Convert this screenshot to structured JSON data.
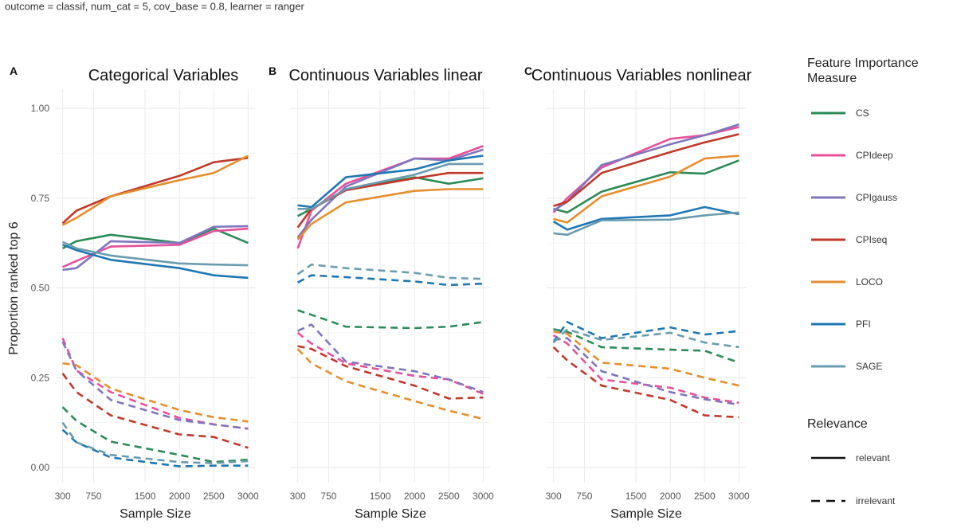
{
  "subtitle": "outcome = classif, num_cat = 5, cov_base = 0.8, learner = ranger",
  "ylabel": "Proportion ranked top 6",
  "xlabel": "Sample Size",
  "x_ticks": [
    300,
    750,
    1500,
    2000,
    2500,
    3000
  ],
  "y_ticks": [
    "0.00",
    "0.25",
    "0.50",
    "0.75",
    "1.00"
  ],
  "legend": {
    "measure_title": "Feature Importance Measure",
    "measures": [
      "CS",
      "CPIdeep",
      "CPIgauss",
      "CPIseq",
      "LOCO",
      "PFI",
      "SAGE"
    ],
    "relevance_title": "Relevance",
    "relevance": [
      "relevant",
      "irrelevant"
    ]
  },
  "colors": {
    "CS": "#2b8a57",
    "CPIdeep": "#e8509a",
    "CPIgauss": "#7f76bd",
    "CPIseq": "#c0392b",
    "LOCO": "#e58e2e",
    "PFI": "#1f77b4",
    "SAGE": "#6a9cae"
  },
  "chart_data": [
    {
      "type": "line",
      "panel_tag": "A",
      "title": "Categorical Variables",
      "x": [
        300,
        500,
        1000,
        2000,
        2500,
        3000
      ],
      "xlim": [
        200,
        3100
      ],
      "ylim": [
        -0.02,
        1.02
      ],
      "series": [
        {
          "name": "CS",
          "relevance": "relevant",
          "values": [
            0.61,
            0.63,
            0.648,
            0.625,
            0.665,
            0.625
          ]
        },
        {
          "name": "CPIdeep",
          "relevance": "relevant",
          "values": [
            0.558,
            0.575,
            0.615,
            0.62,
            0.658,
            0.665
          ]
        },
        {
          "name": "CPIgauss",
          "relevance": "relevant",
          "values": [
            0.55,
            0.555,
            0.63,
            0.625,
            0.67,
            0.672
          ]
        },
        {
          "name": "CPIseq",
          "relevance": "relevant",
          "values": [
            0.68,
            0.715,
            0.755,
            0.812,
            0.85,
            0.862
          ]
        },
        {
          "name": "LOCO",
          "relevance": "relevant",
          "values": [
            0.675,
            0.695,
            0.755,
            0.8,
            0.82,
            0.868
          ]
        },
        {
          "name": "PFI",
          "relevance": "relevant",
          "values": [
            0.62,
            0.605,
            0.578,
            0.555,
            0.535,
            0.528
          ]
        },
        {
          "name": "SAGE",
          "relevance": "relevant",
          "values": [
            0.628,
            0.61,
            0.59,
            0.568,
            0.565,
            0.563
          ]
        },
        {
          "name": "CS",
          "relevance": "irrelevant",
          "values": [
            0.168,
            0.13,
            0.072,
            0.035,
            0.015,
            0.022
          ]
        },
        {
          "name": "CPIdeep",
          "relevance": "irrelevant",
          "values": [
            0.36,
            0.27,
            0.21,
            0.138,
            0.12,
            0.108
          ]
        },
        {
          "name": "CPIgauss",
          "relevance": "irrelevant",
          "values": [
            0.35,
            0.27,
            0.188,
            0.132,
            0.12,
            0.108
          ]
        },
        {
          "name": "CPIseq",
          "relevance": "irrelevant",
          "values": [
            0.262,
            0.21,
            0.145,
            0.092,
            0.085,
            0.055
          ]
        },
        {
          "name": "LOCO",
          "relevance": "irrelevant",
          "values": [
            0.29,
            0.285,
            0.22,
            0.16,
            0.14,
            0.128
          ]
        },
        {
          "name": "PFI",
          "relevance": "irrelevant",
          "values": [
            0.105,
            0.07,
            0.028,
            0.003,
            0.005,
            0.005
          ]
        },
        {
          "name": "SAGE",
          "relevance": "irrelevant",
          "values": [
            0.125,
            0.07,
            0.035,
            0.015,
            0.012,
            0.018
          ]
        }
      ]
    },
    {
      "type": "line",
      "panel_tag": "B",
      "title": "Continuous Variables linear",
      "x": [
        300,
        500,
        1000,
        2000,
        2500,
        3000
      ],
      "xlim": [
        200,
        3100
      ],
      "ylim": [
        -0.02,
        1.02
      ],
      "series": [
        {
          "name": "CS",
          "relevance": "relevant",
          "values": [
            0.7,
            0.72,
            0.772,
            0.808,
            0.79,
            0.805
          ]
        },
        {
          "name": "CPIdeep",
          "relevance": "relevant",
          "values": [
            0.61,
            0.715,
            0.79,
            0.86,
            0.86,
            0.895
          ]
        },
        {
          "name": "CPIgauss",
          "relevance": "relevant",
          "values": [
            0.64,
            0.69,
            0.782,
            0.86,
            0.855,
            0.885
          ]
        },
        {
          "name": "CPIseq",
          "relevance": "relevant",
          "values": [
            0.668,
            0.72,
            0.772,
            0.805,
            0.82,
            0.82
          ]
        },
        {
          "name": "LOCO",
          "relevance": "relevant",
          "values": [
            0.635,
            0.678,
            0.738,
            0.77,
            0.775,
            0.775
          ]
        },
        {
          "name": "PFI",
          "relevance": "relevant",
          "values": [
            0.73,
            0.725,
            0.808,
            0.83,
            0.855,
            0.868
          ]
        },
        {
          "name": "SAGE",
          "relevance": "relevant",
          "values": [
            0.72,
            0.72,
            0.775,
            0.815,
            0.845,
            0.845
          ]
        },
        {
          "name": "CS",
          "relevance": "irrelevant",
          "values": [
            0.438,
            0.425,
            0.392,
            0.388,
            0.392,
            0.405
          ]
        },
        {
          "name": "CPIdeep",
          "relevance": "irrelevant",
          "values": [
            0.375,
            0.345,
            0.29,
            0.255,
            0.245,
            0.205
          ]
        },
        {
          "name": "CPIgauss",
          "relevance": "irrelevant",
          "values": [
            0.38,
            0.398,
            0.295,
            0.268,
            0.245,
            0.21
          ]
        },
        {
          "name": "CPIseq",
          "relevance": "irrelevant",
          "values": [
            0.338,
            0.33,
            0.282,
            0.228,
            0.192,
            0.195
          ]
        },
        {
          "name": "LOCO",
          "relevance": "irrelevant",
          "values": [
            0.33,
            0.29,
            0.24,
            0.185,
            0.158,
            0.135
          ]
        },
        {
          "name": "PFI",
          "relevance": "irrelevant",
          "values": [
            0.515,
            0.535,
            0.53,
            0.518,
            0.508,
            0.512
          ]
        },
        {
          "name": "SAGE",
          "relevance": "irrelevant",
          "values": [
            0.538,
            0.565,
            0.555,
            0.542,
            0.528,
            0.525
          ]
        }
      ]
    },
    {
      "type": "line",
      "panel_tag": "C",
      "title": "Continuous Variables nonlinear",
      "x": [
        300,
        500,
        1000,
        2000,
        2500,
        3000
      ],
      "xlim": [
        200,
        3100
      ],
      "ylim": [
        -0.02,
        1.02
      ],
      "series": [
        {
          "name": "CS",
          "relevance": "relevant",
          "values": [
            0.72,
            0.71,
            0.768,
            0.822,
            0.818,
            0.855
          ]
        },
        {
          "name": "CPIdeep",
          "relevance": "relevant",
          "values": [
            0.71,
            0.75,
            0.835,
            0.915,
            0.925,
            0.948
          ]
        },
        {
          "name": "CPIgauss",
          "relevance": "relevant",
          "values": [
            0.715,
            0.74,
            0.842,
            0.9,
            0.925,
            0.955
          ]
        },
        {
          "name": "CPIseq",
          "relevance": "relevant",
          "values": [
            0.728,
            0.74,
            0.82,
            0.878,
            0.905,
            0.928
          ]
        },
        {
          "name": "LOCO",
          "relevance": "relevant",
          "values": [
            0.692,
            0.682,
            0.755,
            0.81,
            0.86,
            0.868
          ]
        },
        {
          "name": "PFI",
          "relevance": "relevant",
          "values": [
            0.685,
            0.662,
            0.692,
            0.702,
            0.725,
            0.705
          ]
        },
        {
          "name": "SAGE",
          "relevance": "relevant",
          "values": [
            0.652,
            0.648,
            0.688,
            0.69,
            0.702,
            0.71
          ]
        },
        {
          "name": "CS",
          "relevance": "irrelevant",
          "values": [
            0.385,
            0.378,
            0.335,
            0.328,
            0.325,
            0.292
          ]
        },
        {
          "name": "CPIdeep",
          "relevance": "irrelevant",
          "values": [
            0.368,
            0.345,
            0.245,
            0.222,
            0.195,
            0.18
          ]
        },
        {
          "name": "CPIgauss",
          "relevance": "irrelevant",
          "values": [
            0.355,
            0.36,
            0.268,
            0.21,
            0.19,
            0.175
          ]
        },
        {
          "name": "CPIseq",
          "relevance": "irrelevant",
          "values": [
            0.335,
            0.298,
            0.228,
            0.188,
            0.145,
            0.14
          ]
        },
        {
          "name": "LOCO",
          "relevance": "irrelevant",
          "values": [
            0.378,
            0.372,
            0.292,
            0.275,
            0.25,
            0.228
          ]
        },
        {
          "name": "PFI",
          "relevance": "irrelevant",
          "values": [
            0.348,
            0.405,
            0.36,
            0.39,
            0.37,
            0.38
          ]
        },
        {
          "name": "SAGE",
          "relevance": "irrelevant",
          "values": [
            0.348,
            0.385,
            0.355,
            0.375,
            0.348,
            0.335
          ]
        }
      ]
    }
  ]
}
